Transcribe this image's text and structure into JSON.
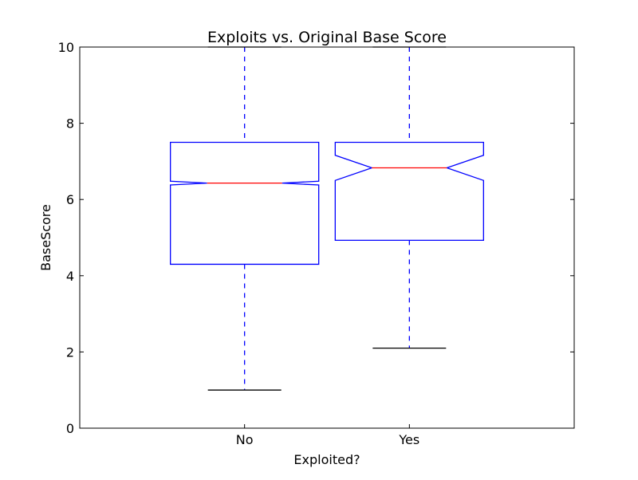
{
  "chart_data": {
    "type": "boxplot",
    "title": "Exploits vs. Original Base Score",
    "xlabel": "Exploited?",
    "ylabel": "BaseScore",
    "ylim": [
      0,
      10
    ],
    "yticks": [
      "0",
      "2",
      "4",
      "6",
      "8",
      "10"
    ],
    "ytick_values": [
      0,
      2,
      4,
      6,
      8,
      10
    ],
    "categories": [
      "No",
      "Yes"
    ],
    "notched": true,
    "grid": false,
    "boxes": [
      {
        "category": "No",
        "whisker_low": 1.0,
        "q1": 4.3,
        "median": 6.43,
        "q3": 7.5,
        "whisker_high": 10.0,
        "notch_low": 6.38,
        "notch_high": 6.48
      },
      {
        "category": "Yes",
        "whisker_low": 2.1,
        "q1": 4.93,
        "median": 6.83,
        "q3": 7.5,
        "whisker_high": 10.0,
        "notch_low": 6.5,
        "notch_high": 7.16
      }
    ],
    "colors": {
      "box": "#0000ff",
      "median": "#ff0000",
      "cap": "#000000"
    }
  }
}
